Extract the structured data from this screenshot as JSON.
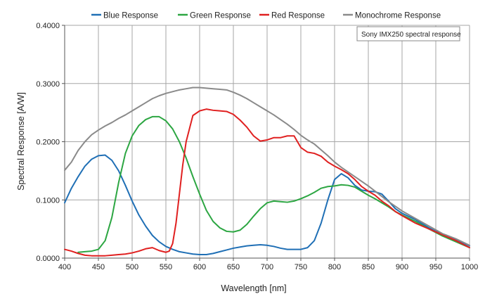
{
  "chart_data": {
    "type": "line",
    "title": "",
    "xlabel": "Wavelength [nm]",
    "ylabel": "Spectral Response [A/W]",
    "xlim": [
      400,
      1000
    ],
    "ylim": [
      0,
      0.4
    ],
    "x_ticks": [
      400,
      450,
      500,
      550,
      600,
      650,
      700,
      750,
      800,
      850,
      900,
      950,
      1000
    ],
    "y_ticks": [
      0,
      0.1,
      0.2,
      0.3,
      0.4
    ],
    "y_tick_labels": [
      "0.0000",
      "0.1000",
      "0.2000",
      "0.3000",
      "0.4000"
    ],
    "grid": true,
    "legend_position": "top",
    "annotation": "Sony IMX250 spectral response",
    "series": [
      {
        "name": "Blue Response",
        "color": "#1f6fb5",
        "x": [
          400,
          410,
          420,
          430,
          440,
          450,
          460,
          470,
          480,
          490,
          500,
          510,
          520,
          530,
          540,
          550,
          560,
          570,
          580,
          590,
          600,
          610,
          620,
          630,
          640,
          650,
          660,
          670,
          680,
          690,
          700,
          710,
          720,
          730,
          740,
          750,
          760,
          770,
          780,
          790,
          800,
          810,
          820,
          830,
          840,
          850,
          860,
          870,
          880,
          890,
          900,
          920,
          940,
          960,
          980,
          1000
        ],
        "y": [
          0.095,
          0.12,
          0.14,
          0.158,
          0.17,
          0.176,
          0.177,
          0.168,
          0.15,
          0.125,
          0.098,
          0.074,
          0.055,
          0.039,
          0.028,
          0.02,
          0.015,
          0.011,
          0.009,
          0.007,
          0.006,
          0.006,
          0.008,
          0.011,
          0.014,
          0.017,
          0.019,
          0.021,
          0.022,
          0.023,
          0.022,
          0.02,
          0.017,
          0.015,
          0.015,
          0.015,
          0.018,
          0.03,
          0.06,
          0.1,
          0.135,
          0.145,
          0.138,
          0.125,
          0.117,
          0.115,
          0.114,
          0.11,
          0.098,
          0.085,
          0.077,
          0.066,
          0.052,
          0.04,
          0.031,
          0.021
        ]
      },
      {
        "name": "Green Response",
        "color": "#2ca642",
        "x": [
          420,
          430,
          440,
          450,
          460,
          470,
          480,
          490,
          500,
          510,
          520,
          530,
          540,
          550,
          560,
          570,
          580,
          590,
          600,
          610,
          620,
          630,
          640,
          650,
          660,
          670,
          680,
          690,
          700,
          710,
          720,
          730,
          740,
          750,
          760,
          770,
          780,
          790,
          800,
          810,
          820,
          830,
          840,
          850,
          860,
          870,
          880,
          890,
          900,
          920,
          940,
          960,
          980,
          1000
        ],
        "y": [
          0.01,
          0.011,
          0.012,
          0.015,
          0.03,
          0.07,
          0.13,
          0.18,
          0.21,
          0.228,
          0.238,
          0.243,
          0.243,
          0.236,
          0.222,
          0.2,
          0.172,
          0.14,
          0.11,
          0.082,
          0.063,
          0.052,
          0.046,
          0.045,
          0.048,
          0.058,
          0.072,
          0.085,
          0.095,
          0.098,
          0.097,
          0.096,
          0.098,
          0.102,
          0.107,
          0.113,
          0.12,
          0.123,
          0.124,
          0.126,
          0.125,
          0.122,
          0.115,
          0.108,
          0.102,
          0.095,
          0.088,
          0.08,
          0.074,
          0.063,
          0.05,
          0.038,
          0.028,
          0.018
        ]
      },
      {
        "name": "Red Response",
        "color": "#e02020",
        "x": [
          400,
          410,
          420,
          430,
          440,
          450,
          460,
          470,
          480,
          490,
          500,
          510,
          520,
          530,
          540,
          550,
          555,
          560,
          565,
          570,
          575,
          580,
          590,
          600,
          610,
          620,
          630,
          640,
          650,
          660,
          670,
          680,
          690,
          700,
          710,
          720,
          730,
          740,
          750,
          760,
          770,
          780,
          790,
          800,
          810,
          820,
          830,
          840,
          850,
          860,
          870,
          880,
          890,
          900,
          920,
          940,
          960,
          980,
          1000
        ],
        "y": [
          0.015,
          0.012,
          0.008,
          0.005,
          0.004,
          0.004,
          0.004,
          0.005,
          0.006,
          0.007,
          0.009,
          0.012,
          0.016,
          0.018,
          0.013,
          0.01,
          0.012,
          0.025,
          0.06,
          0.11,
          0.16,
          0.2,
          0.245,
          0.253,
          0.256,
          0.254,
          0.253,
          0.252,
          0.247,
          0.237,
          0.225,
          0.21,
          0.201,
          0.203,
          0.207,
          0.207,
          0.21,
          0.21,
          0.19,
          0.182,
          0.18,
          0.175,
          0.165,
          0.158,
          0.152,
          0.145,
          0.135,
          0.123,
          0.115,
          0.108,
          0.098,
          0.09,
          0.08,
          0.073,
          0.06,
          0.05,
          0.04,
          0.03,
          0.018
        ]
      },
      {
        "name": "Monochrome Response",
        "color": "#8a8a8a",
        "x": [
          400,
          410,
          420,
          430,
          440,
          450,
          460,
          470,
          480,
          490,
          500,
          510,
          520,
          530,
          540,
          550,
          560,
          570,
          580,
          590,
          600,
          610,
          620,
          630,
          640,
          650,
          660,
          670,
          680,
          690,
          700,
          710,
          720,
          730,
          740,
          750,
          760,
          770,
          780,
          790,
          800,
          810,
          820,
          830,
          840,
          850,
          860,
          870,
          880,
          890,
          900,
          920,
          940,
          960,
          980,
          1000
        ],
        "y": [
          0.151,
          0.165,
          0.185,
          0.2,
          0.212,
          0.22,
          0.227,
          0.233,
          0.24,
          0.246,
          0.253,
          0.26,
          0.267,
          0.274,
          0.279,
          0.283,
          0.286,
          0.289,
          0.291,
          0.293,
          0.293,
          0.292,
          0.291,
          0.29,
          0.289,
          0.285,
          0.28,
          0.274,
          0.267,
          0.26,
          0.253,
          0.246,
          0.238,
          0.23,
          0.221,
          0.211,
          0.203,
          0.196,
          0.186,
          0.176,
          0.165,
          0.156,
          0.148,
          0.14,
          0.132,
          0.124,
          0.115,
          0.106,
          0.097,
          0.089,
          0.081,
          0.068,
          0.055,
          0.042,
          0.033,
          0.022
        ]
      }
    ]
  }
}
